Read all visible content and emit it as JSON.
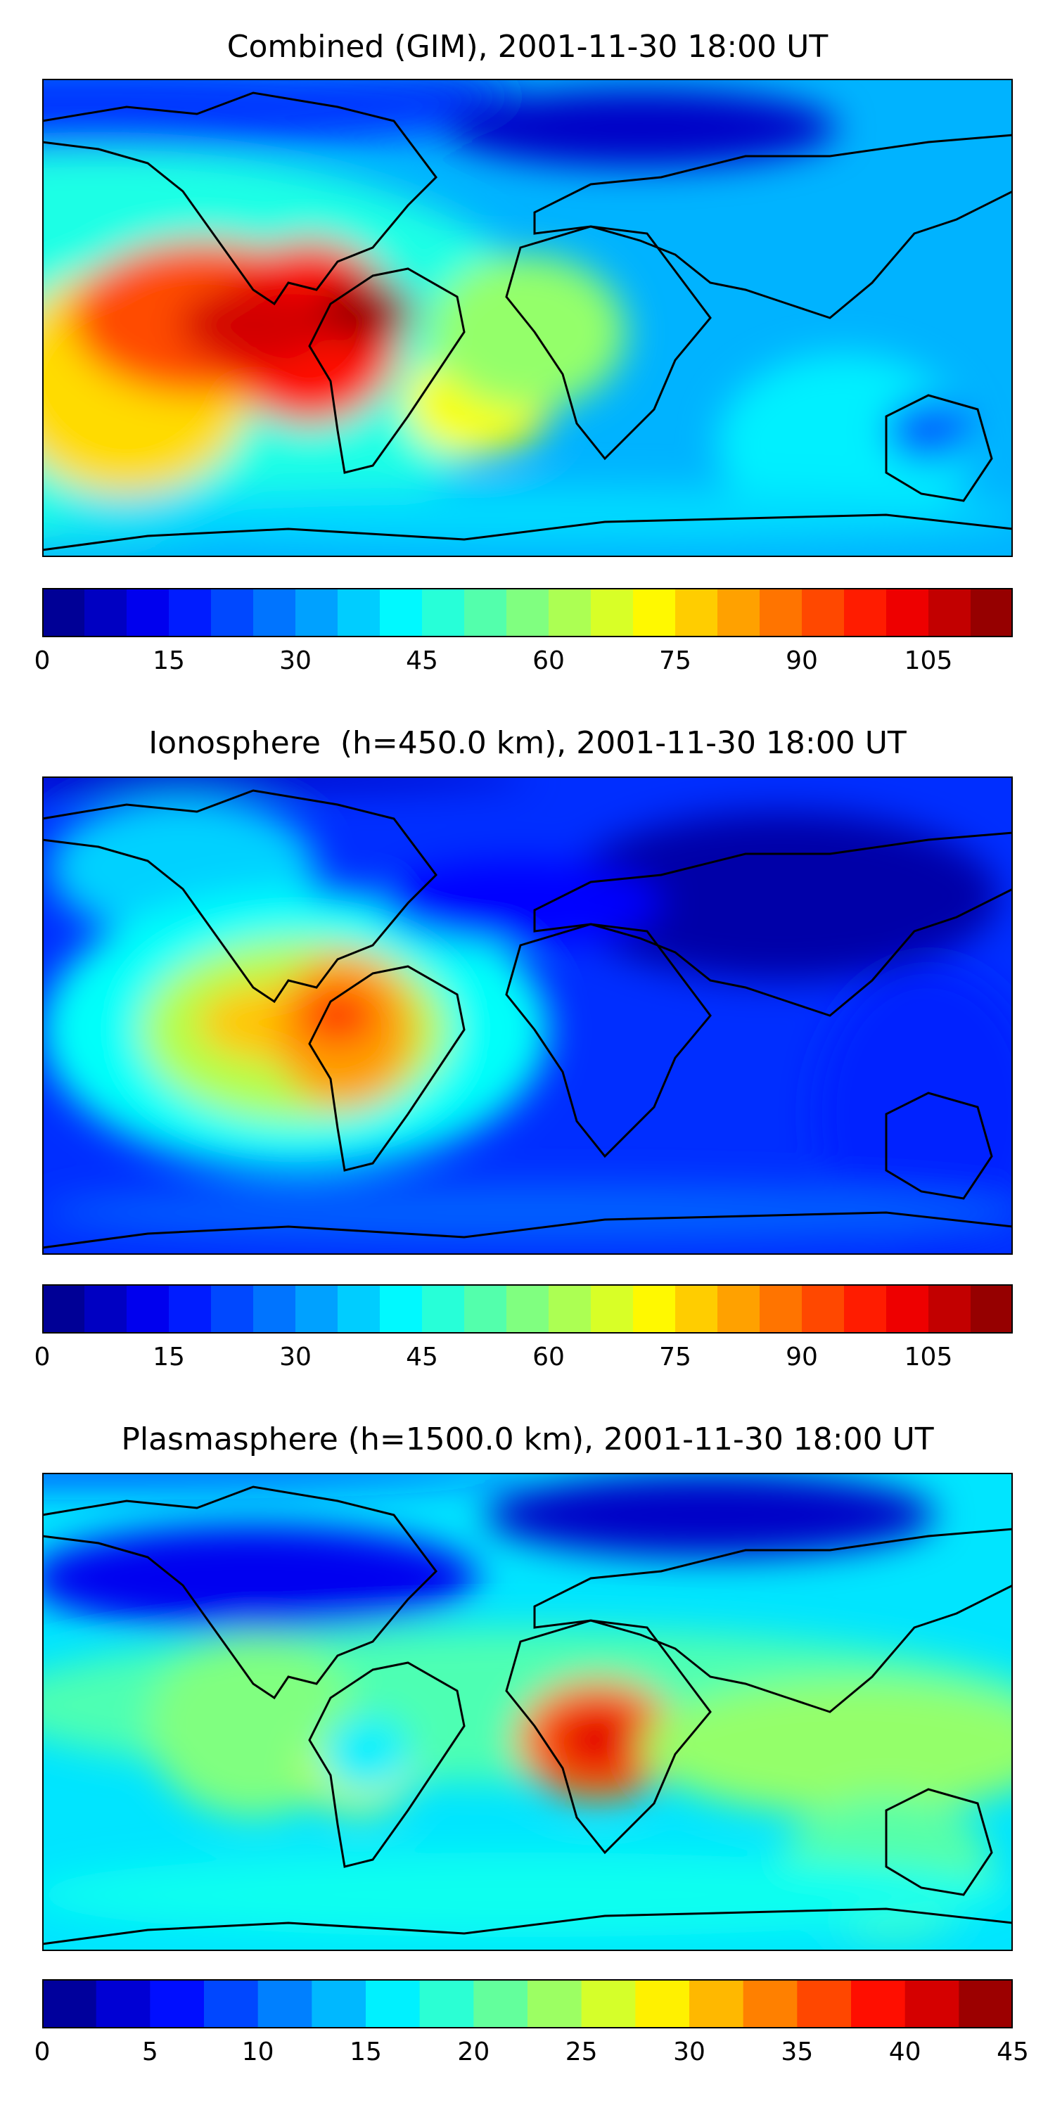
{
  "panels": [
    {
      "title": "Combined (GIM), 2001-11-30 18:00 UT",
      "colorbar": {
        "min": 0,
        "max": 115,
        "step": 5,
        "ticks": [
          "0",
          "15",
          "30",
          "45",
          "60",
          "75",
          "90",
          "105"
        ]
      }
    },
    {
      "title": "Ionosphere  (h=450.0 km), 2001-11-30 18:00 UT",
      "colorbar": {
        "min": 0,
        "max": 115,
        "step": 5,
        "ticks": [
          "0",
          "15",
          "30",
          "45",
          "60",
          "75",
          "90",
          "105"
        ]
      }
    },
    {
      "title": "Plasmasphere (h=1500.0 km), 2001-11-30 18:00 UT",
      "colorbar": {
        "min": 0,
        "max": 45,
        "step": 2.5,
        "ticks": [
          "0",
          "5",
          "10",
          "15",
          "20",
          "25",
          "30",
          "35",
          "40",
          "45"
        ]
      }
    }
  ],
  "colormap": "jet",
  "colors": {
    "coastline": "#000000",
    "frame": "#000000"
  }
}
